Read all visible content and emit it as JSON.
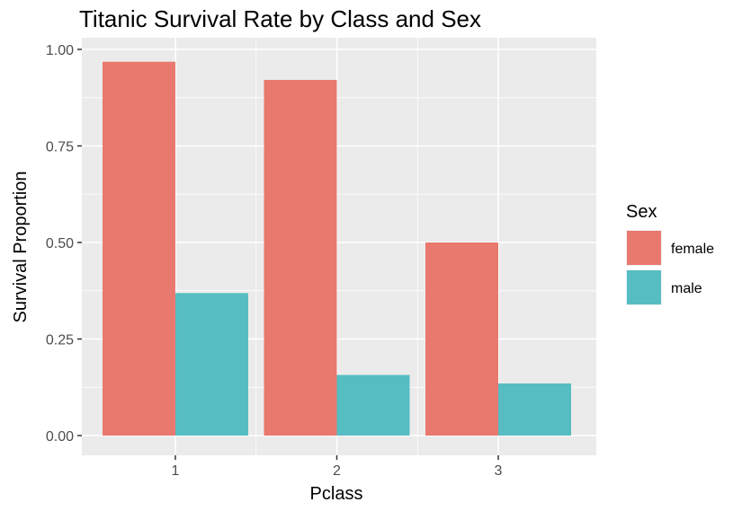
{
  "chart_data": {
    "type": "bar",
    "title": "Titanic Survival Rate by Class and Sex",
    "xlabel": "Pclass",
    "ylabel": "Survival Proportion",
    "categories": [
      "1",
      "2",
      "3"
    ],
    "series": [
      {
        "name": "female",
        "values": [
          0.968,
          0.921,
          0.5
        ],
        "color": "#E9796F"
      },
      {
        "name": "male",
        "values": [
          0.369,
          0.157,
          0.135
        ],
        "color": "#56BEC2"
      }
    ],
    "ylim": [
      0,
      1
    ],
    "yticks": [
      0,
      0.25,
      0.5,
      0.75,
      1
    ],
    "ytick_labels": [
      "0.00",
      "0.25",
      "0.50",
      "0.75",
      "1.00"
    ],
    "legend": {
      "title": "Sex",
      "position": "right"
    },
    "grid": true,
    "panel_background": "#EBEBEB",
    "grid_color": "#FFFFFF"
  }
}
